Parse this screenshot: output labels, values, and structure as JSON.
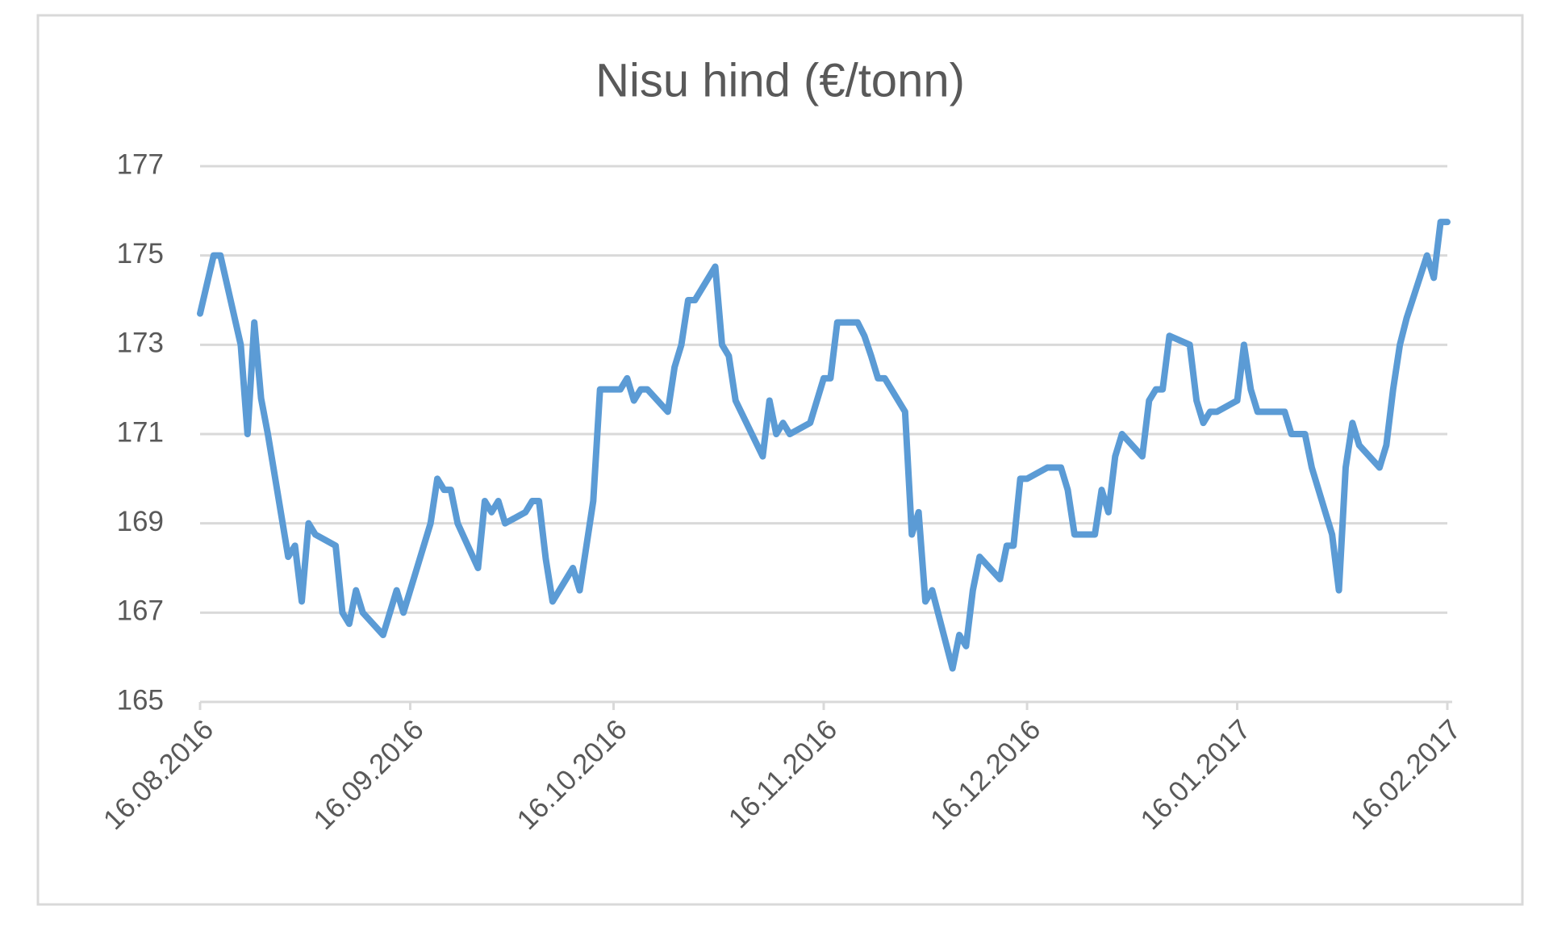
{
  "chart_data": {
    "type": "line",
    "title": "Nisu hind (€/tonn)",
    "color": "#5b9bd5",
    "grid": true,
    "x": [
      "2016-08-16",
      "2016-08-18",
      "2016-08-19",
      "2016-08-22",
      "2016-08-23",
      "2016-08-24",
      "2016-08-25",
      "2016-08-26",
      "2016-08-29",
      "2016-08-30",
      "2016-08-31",
      "2016-09-01",
      "2016-09-02",
      "2016-09-05",
      "2016-09-06",
      "2016-09-07",
      "2016-09-08",
      "2016-09-09",
      "2016-09-12",
      "2016-09-14",
      "2016-09-15",
      "2016-09-19",
      "2016-09-20",
      "2016-09-21",
      "2016-09-22",
      "2016-09-23",
      "2016-09-26",
      "2016-09-27",
      "2016-09-28",
      "2016-09-29",
      "2016-09-30",
      "2016-10-03",
      "2016-10-04",
      "2016-10-05",
      "2016-10-06",
      "2016-10-07",
      "2016-10-10",
      "2016-10-11",
      "2016-10-12",
      "2016-10-13",
      "2016-10-14",
      "2016-10-17",
      "2016-10-18",
      "2016-10-19",
      "2016-10-20",
      "2016-10-21",
      "2016-10-24",
      "2016-10-25",
      "2016-10-26",
      "2016-10-27",
      "2016-10-28",
      "2016-10-31",
      "2016-11-01",
      "2016-11-02",
      "2016-11-03",
      "2016-11-07",
      "2016-11-08",
      "2016-11-09",
      "2016-11-10",
      "2016-11-11",
      "2016-11-14",
      "2016-11-16",
      "2016-11-17",
      "2016-11-18",
      "2016-11-21",
      "2016-11-22",
      "2016-11-23",
      "2016-11-24",
      "2016-11-25",
      "2016-11-28",
      "2016-11-29",
      "2016-11-30",
      "2016-12-01",
      "2016-12-02",
      "2016-12-05",
      "2016-12-06",
      "2016-12-07",
      "2016-12-08",
      "2016-12-09",
      "2016-12-12",
      "2016-12-13",
      "2016-12-14",
      "2016-12-15",
      "2016-12-16",
      "2016-12-19",
      "2016-12-21",
      "2016-12-22",
      "2016-12-23",
      "2016-12-26",
      "2016-12-27",
      "2016-12-28",
      "2016-12-29",
      "2016-12-30",
      "2017-01-02",
      "2017-01-03",
      "2017-01-04",
      "2017-01-05",
      "2017-01-06",
      "2017-01-09",
      "2017-01-10",
      "2017-01-11",
      "2017-01-12",
      "2017-01-13",
      "2017-01-16",
      "2017-01-17",
      "2017-01-18",
      "2017-01-19",
      "2017-01-23",
      "2017-01-24",
      "2017-01-26",
      "2017-01-27",
      "2017-01-30",
      "2017-01-31",
      "2017-02-01",
      "2017-02-02",
      "2017-02-03",
      "2017-02-06",
      "2017-02-07",
      "2017-02-08",
      "2017-02-09",
      "2017-02-10",
      "2017-02-13",
      "2017-02-14",
      "2017-02-15",
      "2017-02-16"
    ],
    "values": [
      173.7,
      175,
      175,
      173,
      171,
      173.5,
      171.8,
      171,
      168.25,
      168.5,
      167.25,
      169,
      168.75,
      168.5,
      167,
      166.75,
      167.5,
      167,
      166.5,
      167.5,
      167,
      169,
      170,
      169.75,
      169.75,
      169,
      168,
      169.5,
      169.25,
      169.5,
      169,
      169.25,
      169.5,
      169.5,
      168.2,
      167.25,
      168,
      167.5,
      168.5,
      169.5,
      172,
      172,
      172.25,
      171.75,
      172,
      172,
      171.5,
      172.5,
      173,
      174,
      174,
      174.75,
      173,
      172.75,
      171.75,
      170.5,
      171.75,
      171,
      171.25,
      171,
      171.25,
      172.25,
      172.25,
      173.5,
      173.5,
      173.2,
      172.75,
      172.25,
      172.25,
      171.5,
      168.75,
      169.25,
      167.25,
      167.5,
      165.75,
      166.5,
      166.25,
      167.5,
      168.25,
      167.75,
      168.5,
      168.5,
      170,
      170,
      170.25,
      170.25,
      169.75,
      168.75,
      168.75,
      169.75,
      169.25,
      170.5,
      171,
      170.5,
      171.75,
      172,
      172,
      173.2,
      173,
      171.75,
      171.25,
      171.5,
      171.5,
      171.75,
      173,
      172,
      171.5,
      171.5,
      171,
      171,
      170.25,
      168.75,
      167.5,
      170.25,
      171.25,
      170.75,
      170.25,
      170.75,
      172,
      173,
      173.6,
      175,
      174.5,
      175.75,
      175.75
    ],
    "xlim": [
      "2016-08-16",
      "2017-02-16"
    ],
    "xticks": [
      {
        "value": "2016-08-16",
        "label": "16.08.2016"
      },
      {
        "value": "2016-09-16",
        "label": "16.09.2016"
      },
      {
        "value": "2016-10-16",
        "label": "16.10.2016"
      },
      {
        "value": "2016-11-16",
        "label": "16.11.2016"
      },
      {
        "value": "2016-12-16",
        "label": "16.12.2016"
      },
      {
        "value": "2017-01-16",
        "label": "16.01.2017"
      },
      {
        "value": "2017-02-16",
        "label": "16.02.2017"
      }
    ],
    "ylim": [
      165,
      177
    ],
    "yticks": [
      165,
      167,
      169,
      171,
      173,
      175,
      177
    ]
  }
}
